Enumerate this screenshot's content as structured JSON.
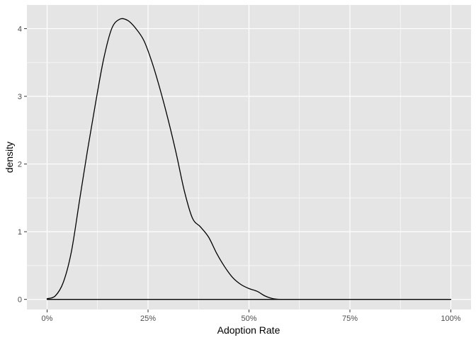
{
  "chart_data": {
    "type": "area",
    "xlabel": "Adoption Rate",
    "ylabel": "density",
    "xlim": [
      -0.05,
      1.05
    ],
    "ylim": [
      -0.15,
      4.35
    ],
    "x_ticks": [
      0,
      0.25,
      0.5,
      0.75,
      1.0
    ],
    "x_tick_labels": [
      "0%",
      "25%",
      "50%",
      "75%",
      "100%"
    ],
    "y_ticks": [
      0,
      1,
      2,
      3,
      4
    ],
    "y_tick_labels": [
      "0",
      "1",
      "2",
      "3",
      "4"
    ],
    "grid": true,
    "panel_color": "#e5e5e5",
    "grid_color": "#ffffff",
    "line_color": "#000000",
    "density_x": [
      0.0,
      0.02,
      0.04,
      0.06,
      0.08,
      0.1,
      0.12,
      0.14,
      0.16,
      0.18,
      0.2,
      0.22,
      0.24,
      0.26,
      0.28,
      0.3,
      0.32,
      0.34,
      0.36,
      0.38,
      0.4,
      0.42,
      0.44,
      0.46,
      0.48,
      0.5,
      0.52,
      0.54,
      0.56,
      0.58,
      0.6,
      0.62,
      0.64,
      0.7,
      0.8,
      0.9,
      1.0
    ],
    "density_y": [
      0.01,
      0.05,
      0.25,
      0.7,
      1.45,
      2.2,
      2.9,
      3.55,
      4.0,
      4.14,
      4.12,
      4.0,
      3.82,
      3.5,
      3.1,
      2.65,
      2.15,
      1.6,
      1.2,
      1.07,
      0.92,
      0.68,
      0.48,
      0.32,
      0.22,
      0.16,
      0.12,
      0.05,
      0.01,
      0.0,
      0.0,
      0.0,
      0.0,
      0.0,
      0.0,
      0.0,
      0.0
    ]
  }
}
